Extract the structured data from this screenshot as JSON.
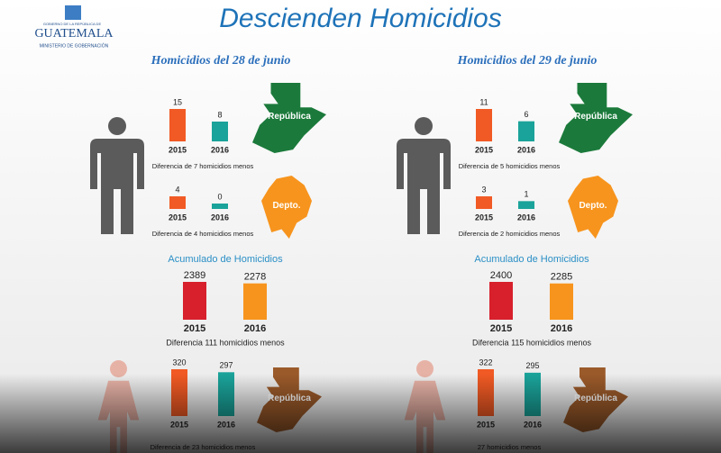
{
  "header": {
    "logo_top": "GOBIERNO DE LA REPÚBLICA DE",
    "logo": "GUATEMALA",
    "logo_sub": "MINISTERIO DE GOBERNACIÓN",
    "title": "Descienden Homicidios"
  },
  "panels": [
    {
      "title": "Homicidios del 28 de junio",
      "groups": [
        {
          "map_label": "República",
          "categories": [
            "2015",
            "2016"
          ],
          "values": [
            15,
            8
          ],
          "note": "Diferencia de 7 homicidios menos"
        },
        {
          "map_label": "Depto.",
          "categories": [
            "2015",
            "2016"
          ],
          "values": [
            4,
            0
          ],
          "note": "Diferencia de 4 homicidios menos"
        }
      ],
      "accum": {
        "title": "Acumulado de Homicidios",
        "categories": [
          "2015",
          "2016"
        ],
        "values": [
          2389,
          2278
        ],
        "note": "Diferencia 111 homicidios menos"
      },
      "women": {
        "map_label": "República",
        "categories": [
          "2015",
          "2016"
        ],
        "values": [
          320,
          297
        ],
        "note": "Diferencia de 23 homicidios menos"
      }
    },
    {
      "title": "Homicidios del 29 de junio",
      "groups": [
        {
          "map_label": "República",
          "categories": [
            "2015",
            "2016"
          ],
          "values": [
            11,
            6
          ],
          "note": "Diferencia de 5 homicidios menos"
        },
        {
          "map_label": "Depto.",
          "categories": [
            "2015",
            "2016"
          ],
          "values": [
            3,
            1
          ],
          "note": "Diferencia de 2 homicidios menos"
        }
      ],
      "accum": {
        "title": "Acumulado de Homicidios",
        "categories": [
          "2015",
          "2016"
        ],
        "values": [
          2400,
          2285
        ],
        "note": "Diferencia 115 homicidios menos"
      },
      "women": {
        "map_label": "República",
        "categories": [
          "2015",
          "2016"
        ],
        "values": [
          322,
          295
        ],
        "note": "27 homicidios menos"
      }
    }
  ]
}
